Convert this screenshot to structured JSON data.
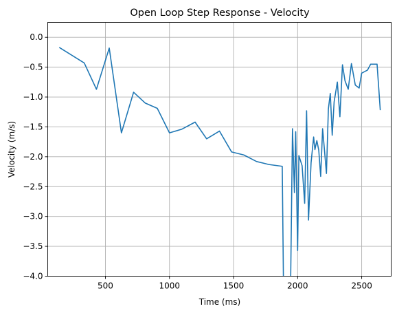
{
  "chart_data": {
    "type": "line",
    "title": "Open Loop Step Response - Velocity",
    "xlabel": "Time (ms)",
    "ylabel": "Velocity (m/s)",
    "xlim": [
      50,
      2730
    ],
    "ylim": [
      -4.0,
      0.25
    ],
    "grid": true,
    "legend": "none",
    "color": "#1f77b4",
    "x_ticks": [
      500,
      1000,
      1500,
      2000,
      2500
    ],
    "x_tick_labels": [
      "500",
      "1000",
      "1500",
      "2000",
      "2500"
    ],
    "y_ticks": [
      0.0,
      -0.5,
      -1.0,
      -1.5,
      -2.0,
      -2.5,
      -3.0,
      -3.5,
      -4.0
    ],
    "y_tick_labels": [
      "0.0",
      "−0.5",
      "−1.0",
      "−1.5",
      "−2.0",
      "−2.5",
      "−3.0",
      "−3.5",
      "−4.0"
    ],
    "series": [
      {
        "x": [
          140,
          335,
          430,
          530,
          625,
          720,
          810,
          905,
          1000,
          1095,
          1200,
          1290,
          1390,
          1485,
          1580,
          1680,
          1775,
          1880,
          1890,
          1945,
          1960,
          1975,
          1985,
          2000,
          2010,
          2020,
          2035,
          2055,
          2070,
          2085,
          2105,
          2125,
          2135,
          2150,
          2165,
          2180,
          2195,
          2210,
          2225,
          2240,
          2255,
          2270,
          2285,
          2310,
          2330,
          2350,
          2370,
          2395,
          2420,
          2450,
          2480,
          2500,
          2545,
          2570,
          2620,
          2645
        ],
        "y": [
          -0.17,
          -0.43,
          -0.87,
          -0.18,
          -1.6,
          -0.92,
          -1.1,
          -1.19,
          -1.6,
          -1.54,
          -1.42,
          -1.7,
          -1.57,
          -1.92,
          -1.97,
          -2.08,
          -2.13,
          -2.16,
          -4.2,
          -4.2,
          -1.53,
          -2.6,
          -1.58,
          -3.57,
          -1.98,
          -2.05,
          -2.15,
          -2.78,
          -1.23,
          -3.06,
          -2.1,
          -1.67,
          -1.88,
          -1.73,
          -1.89,
          -2.33,
          -1.53,
          -1.9,
          -2.28,
          -1.2,
          -0.94,
          -1.64,
          -1.08,
          -0.75,
          -1.33,
          -0.46,
          -0.73,
          -0.87,
          -0.44,
          -0.8,
          -0.85,
          -0.6,
          -0.55,
          -0.45,
          -0.45,
          -1.22
        ]
      }
    ]
  }
}
